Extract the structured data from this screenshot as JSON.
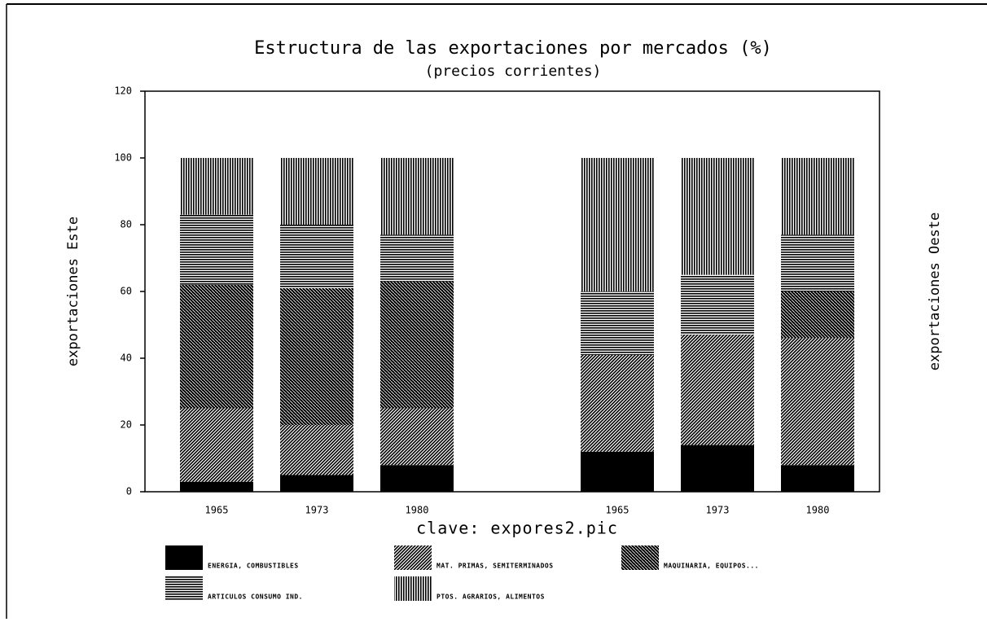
{
  "chart_data": {
    "type": "stacked_bar",
    "title": "Estructura de las exportaciones por mercados (%)",
    "subtitle": "(precios corrientes)",
    "xlabel": "clave: expores2.pic",
    "ylabel": "exportaciones Este",
    "y2label": "exportaciones Oeste",
    "categories": [
      "1965",
      "1973",
      "1980",
      null,
      "1965",
      "1973",
      "1980"
    ],
    "series": [
      {
        "name": "ENERGIA, COMBUSTIBLES",
        "color": "#000000",
        "pattern": "solid",
        "values": [
          3,
          5,
          8,
          null,
          12,
          14,
          8
        ]
      },
      {
        "name": "MAT. PRIMAS, SEMITERMINADOS",
        "color": "#000000",
        "pattern": "diagonal",
        "values": [
          22,
          15,
          17,
          null,
          29,
          33,
          38
        ]
      },
      {
        "name": "MAQUINARIA, EQUIPOS...",
        "color": "#000000",
        "pattern": "crosshatch",
        "values": [
          37,
          41,
          38,
          null,
          0,
          0,
          14
        ]
      },
      {
        "name": "ARTICULOS CONSUMO IND.",
        "color": "#000000",
        "pattern": "horizontal",
        "values": [
          21,
          19,
          14,
          null,
          19,
          18,
          17
        ]
      },
      {
        "name": "PTOS. AGRARIOS, ALIMENTOS",
        "color": "#000000",
        "pattern": "vertical",
        "values": [
          17,
          20,
          23,
          null,
          40,
          35,
          23
        ]
      }
    ],
    "ylim": [
      0,
      120
    ],
    "yticks": [
      0,
      20,
      40,
      60,
      80,
      100,
      120
    ],
    "grid": false
  }
}
